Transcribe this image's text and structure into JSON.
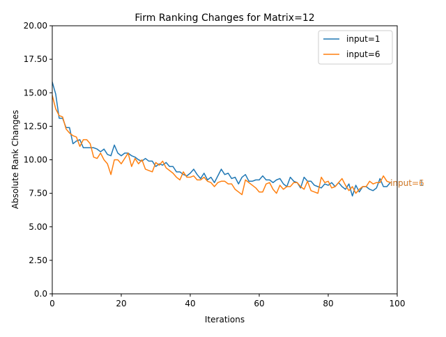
{
  "chart_data": {
    "type": "line",
    "title": "Firm Ranking Changes for Matrix=12",
    "xlabel": "Iterations",
    "ylabel": "Absolute Rank Changes",
    "xlim": [
      0,
      100
    ],
    "ylim": [
      0.0,
      20.0
    ],
    "xticks": [
      0,
      20,
      40,
      60,
      80,
      100
    ],
    "xtick_labels": [
      "0",
      "20",
      "40",
      "60",
      "80",
      "100"
    ],
    "yticks": [
      0.0,
      2.5,
      5.0,
      7.5,
      10.0,
      12.5,
      15.0,
      17.5,
      20.0
    ],
    "ytick_labels": [
      "0.0",
      "2.50",
      "5.00",
      "7.50",
      "10.00",
      "12.50",
      "15.00",
      "17.50",
      "20.00"
    ],
    "grid": false,
    "legend_position": "top-right",
    "x": [
      0,
      1,
      2,
      3,
      4,
      5,
      6,
      7,
      8,
      9,
      10,
      11,
      12,
      13,
      14,
      15,
      16,
      17,
      18,
      19,
      20,
      21,
      22,
      23,
      24,
      25,
      26,
      27,
      28,
      29,
      30,
      31,
      32,
      33,
      34,
      35,
      36,
      37,
      38,
      39,
      40,
      41,
      42,
      43,
      44,
      45,
      46,
      47,
      48,
      49,
      50,
      51,
      52,
      53,
      54,
      55,
      56,
      57,
      58,
      59,
      60,
      61,
      62,
      63,
      64,
      65,
      66,
      67,
      68,
      69,
      70,
      71,
      72,
      73,
      74,
      75,
      76,
      77,
      78,
      79,
      80,
      81,
      82,
      83,
      84,
      85,
      86,
      87,
      88,
      89,
      90,
      91,
      92,
      93,
      94,
      95,
      96,
      97,
      98
    ],
    "series": [
      {
        "name": "input=1",
        "color": "#1f77b4",
        "end_label": "input=1",
        "values": [
          15.8,
          14.9,
          13.1,
          13.1,
          12.4,
          12.4,
          11.2,
          11.4,
          11.5,
          10.9,
          10.9,
          10.9,
          10.9,
          10.8,
          10.6,
          10.8,
          10.4,
          10.3,
          11.1,
          10.5,
          10.3,
          10.5,
          10.5,
          10.3,
          10.2,
          10.0,
          9.9,
          10.1,
          9.9,
          9.9,
          9.5,
          9.7,
          9.6,
          9.8,
          9.5,
          9.5,
          9.1,
          9.1,
          8.9,
          8.8,
          9.0,
          9.3,
          8.9,
          8.6,
          9.0,
          8.5,
          8.7,
          8.3,
          8.8,
          9.3,
          8.9,
          9.0,
          8.6,
          8.7,
          8.2,
          8.7,
          8.9,
          8.4,
          8.4,
          8.5,
          8.5,
          8.8,
          8.5,
          8.5,
          8.3,
          8.5,
          8.6,
          8.2,
          8.0,
          8.7,
          8.4,
          8.3,
          7.9,
          8.7,
          8.4,
          8.4,
          8.1,
          8.0,
          7.9,
          8.2,
          8.1,
          8.3,
          8.0,
          8.3,
          8.0,
          7.8,
          8.2,
          7.3,
          8.1,
          7.6,
          8.0,
          8.0,
          7.8,
          7.7,
          7.9,
          8.6,
          8.0,
          8.0,
          8.3
        ]
      },
      {
        "name": "input=6",
        "color": "#ff7f0e",
        "end_label": "input=6",
        "values": [
          14.8,
          13.8,
          13.3,
          13.2,
          12.3,
          12.0,
          11.8,
          11.7,
          11.0,
          11.5,
          11.5,
          11.2,
          10.2,
          10.1,
          10.5,
          10.0,
          9.7,
          8.9,
          10.0,
          10.0,
          9.7,
          10.1,
          10.5,
          9.5,
          10.1,
          9.7,
          10.0,
          9.3,
          9.2,
          9.1,
          9.8,
          9.6,
          9.9,
          9.4,
          9.2,
          9.0,
          8.7,
          8.5,
          9.1,
          8.7,
          8.7,
          8.8,
          8.5,
          8.5,
          8.7,
          8.4,
          8.3,
          8.0,
          8.3,
          8.4,
          8.4,
          8.2,
          8.2,
          7.8,
          7.6,
          7.4,
          8.5,
          8.3,
          8.1,
          7.9,
          7.6,
          7.6,
          8.2,
          8.3,
          7.8,
          7.5,
          8.1,
          7.8,
          8.0,
          8.0,
          8.3,
          8.3,
          8.0,
          7.8,
          8.4,
          7.7,
          7.6,
          7.5,
          8.7,
          8.3,
          8.4,
          7.9,
          8.0,
          8.3,
          8.6,
          8.1,
          7.7,
          8.0,
          7.5,
          7.8,
          8.0,
          8.0,
          8.4,
          8.2,
          8.3,
          8.3,
          8.8,
          8.4,
          8.3
        ]
      }
    ]
  }
}
